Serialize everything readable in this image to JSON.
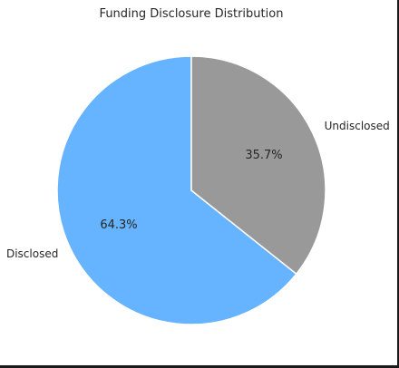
{
  "chart_data": {
    "type": "pie",
    "title": "Funding Disclosure Distribution",
    "categories": [
      "Disclosed",
      "Undisclosed"
    ],
    "values": [
      64.3,
      35.7
    ],
    "value_labels": [
      "64.3%",
      "35.7%"
    ],
    "colors": [
      "#66b3ff",
      "#999999"
    ],
    "start_angle_deg": 90,
    "direction": "counterclockwise",
    "legend": "none"
  }
}
